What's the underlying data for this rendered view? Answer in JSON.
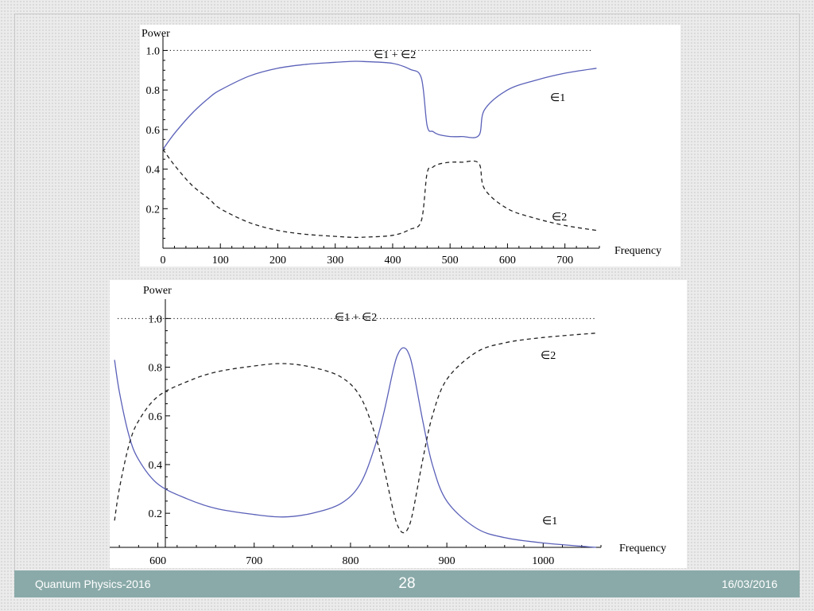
{
  "footer": {
    "left_text": "Quantum Physics-2016",
    "page_number": "28",
    "date": "16/03/2016"
  },
  "colors": {
    "solid_curve": "#5a60b8",
    "dashed_curve": "#222222",
    "footer_bar": "#8aaaa9"
  },
  "chart_data": [
    {
      "type": "line",
      "ylabel": "Power",
      "xlabel": "Frequency",
      "xlim": [
        0,
        760
      ],
      "ylim": [
        0,
        1.05
      ],
      "xticks": [
        "0",
        "100",
        "200",
        "300",
        "400",
        "500",
        "600",
        "700"
      ],
      "yticks": [
        "0.2",
        "0.4",
        "0.6",
        "0.8",
        "1.0"
      ],
      "reference_line": {
        "y": 1.0,
        "label": "∈1 + ∈2",
        "style": "dotted"
      },
      "series": [
        {
          "name": "∈1",
          "style": "solid",
          "x": [
            0,
            20,
            50,
            80,
            100,
            150,
            200,
            250,
            300,
            330,
            350,
            400,
            430,
            450,
            460,
            470,
            480,
            500,
            520,
            550,
            560,
            600,
            650,
            700,
            755
          ],
          "y": [
            0.5,
            0.58,
            0.68,
            0.76,
            0.8,
            0.87,
            0.91,
            0.93,
            0.94,
            0.945,
            0.944,
            0.935,
            0.905,
            0.86,
            0.62,
            0.59,
            0.575,
            0.565,
            0.565,
            0.57,
            0.7,
            0.8,
            0.85,
            0.885,
            0.91
          ]
        },
        {
          "name": "∈2",
          "style": "dashed",
          "x": [
            0,
            20,
            50,
            80,
            100,
            150,
            200,
            250,
            300,
            330,
            350,
            400,
            430,
            450,
            460,
            470,
            480,
            500,
            520,
            550,
            560,
            600,
            650,
            700,
            755
          ],
          "y": [
            0.5,
            0.42,
            0.32,
            0.25,
            0.2,
            0.13,
            0.09,
            0.07,
            0.06,
            0.055,
            0.056,
            0.065,
            0.095,
            0.14,
            0.38,
            0.41,
            0.425,
            0.435,
            0.435,
            0.43,
            0.3,
            0.2,
            0.15,
            0.115,
            0.09
          ]
        }
      ]
    },
    {
      "type": "line",
      "ylabel": "Power",
      "xlabel": "Frequency",
      "xlim": [
        550,
        1060
      ],
      "ylim": [
        0.06,
        1.06
      ],
      "xticks": [
        "600",
        "700",
        "800",
        "900",
        "1000"
      ],
      "yticks": [
        "0.2",
        "0.4",
        "0.6",
        "0.8",
        "1.0"
      ],
      "reference_line": {
        "y": 1.0,
        "label": "∈1 + ∈2",
        "style": "dotted"
      },
      "series": [
        {
          "name": "∈1",
          "style": "solid",
          "x": [
            555,
            560,
            570,
            580,
            600,
            630,
            660,
            700,
            730,
            760,
            790,
            810,
            825,
            835,
            845,
            850,
            855,
            860,
            865,
            875,
            885,
            900,
            930,
            960,
            1000,
            1055
          ],
          "y": [
            0.83,
            0.7,
            0.52,
            0.42,
            0.32,
            0.26,
            0.22,
            0.195,
            0.185,
            0.2,
            0.24,
            0.32,
            0.47,
            0.62,
            0.8,
            0.86,
            0.88,
            0.86,
            0.79,
            0.58,
            0.4,
            0.25,
            0.14,
            0.1,
            0.078,
            0.06
          ]
        },
        {
          "name": "∈2",
          "style": "dashed",
          "x": [
            555,
            560,
            570,
            580,
            600,
            630,
            660,
            700,
            730,
            760,
            790,
            810,
            825,
            835,
            845,
            850,
            855,
            860,
            865,
            875,
            885,
            900,
            930,
            960,
            1000,
            1055
          ],
          "y": [
            0.17,
            0.3,
            0.48,
            0.58,
            0.68,
            0.74,
            0.78,
            0.805,
            0.815,
            0.8,
            0.76,
            0.68,
            0.53,
            0.38,
            0.2,
            0.14,
            0.12,
            0.14,
            0.21,
            0.42,
            0.6,
            0.75,
            0.86,
            0.9,
            0.922,
            0.94
          ]
        }
      ]
    }
  ]
}
